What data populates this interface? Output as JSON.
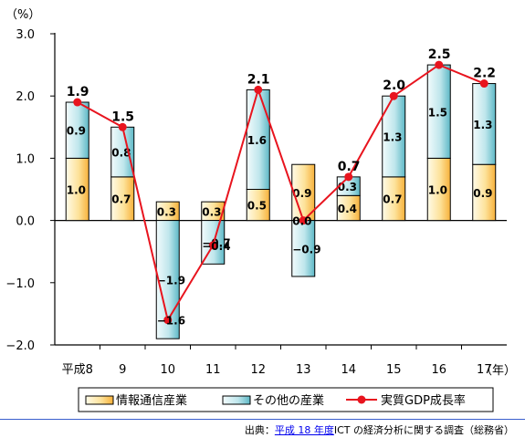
{
  "chart_data": {
    "type": "bar",
    "subtype": "stacked-bar-with-line",
    "y_unit_label": "（%）",
    "x_unit_label": "（年）",
    "categories": [
      "平成8",
      "9",
      "10",
      "11",
      "12",
      "13",
      "14",
      "15",
      "16",
      "17"
    ],
    "ylim": [
      -2.0,
      3.0
    ],
    "yticks": [
      "3.0",
      "2.0",
      "1.0",
      "0.0",
      "−1.0",
      "−2.0"
    ],
    "grid": false,
    "legend_placement": "bottom",
    "series": [
      {
        "name": "情報通信産業",
        "type": "bar",
        "color": "#f7b94d",
        "values": [
          1.0,
          0.7,
          0.3,
          0.3,
          0.5,
          0.9,
          0.4,
          0.7,
          1.0,
          0.9
        ],
        "labels": [
          "1.0",
          "0.7",
          "0.3",
          "0.3",
          "0.5",
          "0.9",
          "0.4",
          "0.7",
          "1.0",
          "0.9"
        ]
      },
      {
        "name": "その他の産業",
        "type": "bar",
        "color": "#67c3d0",
        "values": [
          0.9,
          0.8,
          -1.9,
          -0.7,
          1.6,
          -0.9,
          0.3,
          1.3,
          1.5,
          1.3
        ],
        "labels": [
          "0.9",
          "0.8",
          "−1.9",
          "−0.7",
          "1.6",
          "−0.9",
          "0.3",
          "1.3",
          "1.5",
          "1.3"
        ]
      },
      {
        "name": "実質GDP成長率",
        "type": "line",
        "color": "#e8141e",
        "values": [
          1.9,
          1.5,
          -1.6,
          -0.4,
          2.1,
          0.0,
          0.7,
          2.0,
          2.5,
          2.2
        ],
        "labels": [
          "1.9",
          "1.5",
          "−1.6",
          "−0.4",
          "2.1",
          "0.0",
          "0.7",
          "2.0",
          "2.5",
          "2.2"
        ]
      }
    ]
  },
  "source": {
    "prefix": "出典：",
    "link_text": "平成 18 年度",
    "suffix": "ICT の経済分析に関する調査（総務省）"
  }
}
